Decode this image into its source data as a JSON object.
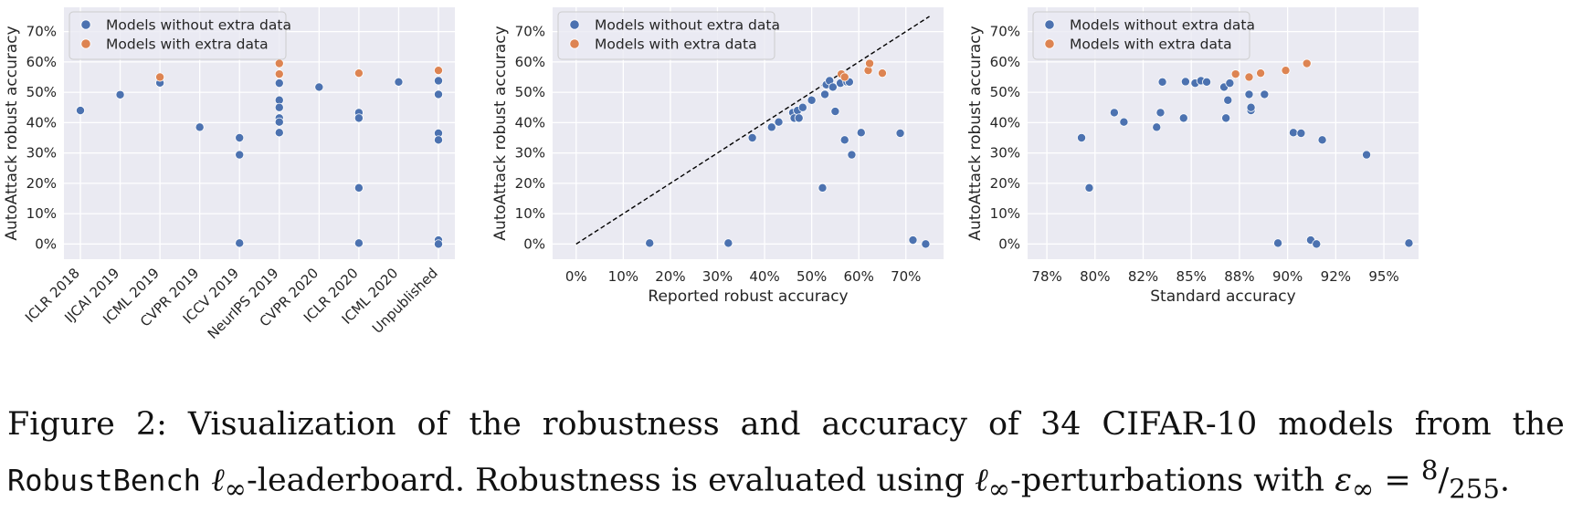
{
  "colors": {
    "without": "#4c72b0",
    "with": "#dd8452",
    "panel_bg": "#eaeaf2",
    "grid": "#ffffff"
  },
  "legend": {
    "without": "Models without extra data",
    "with": "Models with extra data"
  },
  "chart_data": [
    {
      "type": "scatter",
      "xlabel": "",
      "ylabel": "AutoAttack robust accuracy",
      "x_type": "categorical",
      "categories": [
        "ICLR 2018",
        "IJCAI 2019",
        "ICML 2019",
        "CVPR 2019",
        "ICCV 2019",
        "NeurIPS 2019",
        "CVPR 2020",
        "ICLR 2020",
        "ICML 2020",
        "Unpublished"
      ],
      "ylim": [
        -5,
        78
      ],
      "yticks": [
        0,
        10,
        20,
        30,
        40,
        50,
        60,
        70
      ],
      "ytick_labels": [
        "0%",
        "10%",
        "20%",
        "30%",
        "40%",
        "50%",
        "60%",
        "70%"
      ],
      "legend_position": "top-left",
      "grid": true,
      "series": [
        {
          "name": "Models without extra data",
          "points": [
            [
              "ICLR 2018",
              44.0
            ],
            [
              "IJCAI 2019",
              49.2
            ],
            [
              "ICML 2019",
              53.1
            ],
            [
              "CVPR 2019",
              38.5
            ],
            [
              "ICCV 2019",
              35.0
            ],
            [
              "ICCV 2019",
              29.4
            ],
            [
              "ICCV 2019",
              0.3
            ],
            [
              "NeurIPS 2019",
              53.0
            ],
            [
              "NeurIPS 2019",
              47.4
            ],
            [
              "NeurIPS 2019",
              45.0
            ],
            [
              "NeurIPS 2019",
              41.5
            ],
            [
              "NeurIPS 2019",
              40.2
            ],
            [
              "NeurIPS 2019",
              36.7
            ],
            [
              "CVPR 2020",
              51.7
            ],
            [
              "ICLR 2020",
              43.3
            ],
            [
              "ICLR 2020",
              41.5
            ],
            [
              "ICLR 2020",
              18.5
            ],
            [
              "ICLR 2020",
              0.3
            ],
            [
              "ICML 2020",
              53.4
            ],
            [
              "Unpublished",
              53.8
            ],
            [
              "Unpublished",
              49.3
            ],
            [
              "Unpublished",
              36.5
            ],
            [
              "Unpublished",
              34.3
            ],
            [
              "Unpublished",
              1.3
            ],
            [
              "Unpublished",
              0.0
            ]
          ]
        },
        {
          "name": "Models with extra data",
          "points": [
            [
              "ICML 2019",
              55.0
            ],
            [
              "NeurIPS 2019",
              59.5
            ],
            [
              "NeurIPS 2019",
              56.0
            ],
            [
              "ICLR 2020",
              56.3
            ],
            [
              "Unpublished",
              57.2
            ]
          ]
        }
      ]
    },
    {
      "type": "scatter",
      "xlabel": "Reported robust accuracy",
      "ylabel": "AutoAttack robust accuracy",
      "xlim": [
        -5,
        78
      ],
      "ylim": [
        -5,
        78
      ],
      "xticks": [
        0,
        10,
        20,
        30,
        40,
        50,
        60,
        70
      ],
      "xtick_labels": [
        "0%",
        "10%",
        "20%",
        "30%",
        "40%",
        "50%",
        "60%",
        "70%"
      ],
      "yticks": [
        0,
        10,
        20,
        30,
        40,
        50,
        60,
        70
      ],
      "ytick_labels": [
        "0%",
        "10%",
        "20%",
        "30%",
        "40%",
        "50%",
        "60%",
        "70%"
      ],
      "reference_line": {
        "from": [
          0,
          0
        ],
        "to": [
          75,
          75
        ],
        "style": "dashed"
      },
      "legend_position": "top-left",
      "grid": true,
      "series": [
        {
          "name": "Models without extra data",
          "points": [
            [
              15.6,
              0.3
            ],
            [
              32.3,
              0.3
            ],
            [
              37.4,
              35.0
            ],
            [
              41.5,
              38.5
            ],
            [
              43.0,
              40.2
            ],
            [
              46.0,
              43.3
            ],
            [
              46.3,
              41.5
            ],
            [
              47.0,
              44.0
            ],
            [
              47.3,
              41.5
            ],
            [
              48.1,
              45.0
            ],
            [
              50.0,
              47.4
            ],
            [
              52.3,
              18.5
            ],
            [
              52.8,
              49.3
            ],
            [
              53.1,
              52.5
            ],
            [
              53.8,
              53.8
            ],
            [
              54.5,
              51.7
            ],
            [
              55.0,
              43.7
            ],
            [
              56.1,
              53.0
            ],
            [
              57.0,
              34.3
            ],
            [
              57.5,
              53.4
            ],
            [
              58.0,
              53.4
            ],
            [
              58.5,
              29.4
            ],
            [
              60.5,
              36.7
            ],
            [
              68.8,
              36.5
            ],
            [
              71.5,
              1.3
            ],
            [
              74.2,
              0.0
            ]
          ]
        },
        {
          "name": "Models with extra data",
          "points": [
            [
              56.3,
              56.0
            ],
            [
              57.0,
              55.0
            ],
            [
              62.0,
              57.2
            ],
            [
              62.3,
              59.5
            ],
            [
              65.0,
              56.3
            ]
          ]
        }
      ]
    },
    {
      "type": "scatter",
      "xlabel": "Standard accuracy",
      "ylabel": "AutoAttack robust accuracy",
      "xlim": [
        76.5,
        96.8
      ],
      "ylim": [
        -5,
        78
      ],
      "xticks": [
        77.5,
        80,
        82.5,
        85,
        87.5,
        90,
        92.5,
        95
      ],
      "xtick_labels": [
        "78%",
        "80%",
        "82%",
        "85%",
        "88%",
        "90%",
        "92%",
        "95%"
      ],
      "yticks": [
        0,
        10,
        20,
        30,
        40,
        50,
        60,
        70
      ],
      "ytick_labels": [
        "0%",
        "10%",
        "20%",
        "30%",
        "40%",
        "50%",
        "60%",
        "70%"
      ],
      "legend_position": "top-left",
      "grid": true,
      "series": [
        {
          "name": "Models without extra data",
          "points": [
            [
              79.3,
              35.0
            ],
            [
              79.7,
              18.5
            ],
            [
              81.0,
              43.3
            ],
            [
              81.5,
              40.2
            ],
            [
              83.2,
              38.5
            ],
            [
              83.4,
              43.3
            ],
            [
              83.5,
              53.4
            ],
            [
              84.6,
              41.5
            ],
            [
              84.7,
              53.5
            ],
            [
              85.2,
              53.0
            ],
            [
              85.5,
              53.8
            ],
            [
              85.8,
              53.4
            ],
            [
              86.7,
              51.7
            ],
            [
              86.8,
              41.5
            ],
            [
              86.9,
              47.4
            ],
            [
              87.0,
              53.0
            ],
            [
              88.0,
              49.3
            ],
            [
              88.1,
              44.0
            ],
            [
              88.1,
              45.0
            ],
            [
              88.8,
              49.3
            ],
            [
              89.5,
              0.3
            ],
            [
              90.3,
              36.7
            ],
            [
              90.7,
              36.5
            ],
            [
              91.2,
              1.3
            ],
            [
              91.5,
              0.0
            ],
            [
              91.8,
              34.3
            ],
            [
              94.1,
              29.4
            ],
            [
              96.3,
              0.3
            ]
          ]
        },
        {
          "name": "Models with extra data",
          "points": [
            [
              87.3,
              56.0
            ],
            [
              88.0,
              55.0
            ],
            [
              88.6,
              56.3
            ],
            [
              89.9,
              57.2
            ],
            [
              91.0,
              59.5
            ]
          ]
        }
      ]
    }
  ],
  "caption": {
    "line1_words": [
      "Figure",
      "2:",
      "Visualization",
      "of",
      "the",
      "robustness",
      "and",
      "accuracy",
      "of",
      "34",
      "CIFAR-10",
      "models",
      "from",
      "the"
    ],
    "line2_bench": "RobustBench",
    "line2_ell": "ℓ",
    "line2_inf": "∞",
    "line2_a": "-leaderboard. Robustness is evaluated using",
    "line2_b": "-perturbations with",
    "line2_eps": "ε",
    "line2_eq": "=",
    "line2_num": "8",
    "line2_slash": "/",
    "line2_den": "255",
    "line2_end": "."
  }
}
